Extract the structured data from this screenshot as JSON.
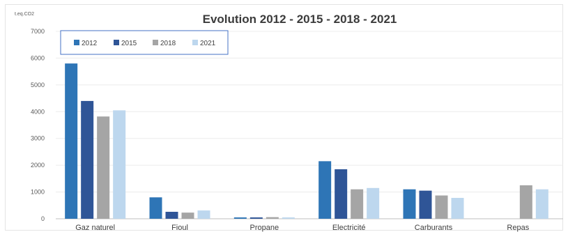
{
  "chart_data": {
    "type": "bar",
    "title": "Evolution 2012 - 2015 - 2018 - 2021",
    "ylabel": "t.eq.CO2",
    "xlabel": "",
    "ylim": [
      0,
      7000
    ],
    "yticks": [
      0,
      1000,
      2000,
      3000,
      4000,
      5000,
      6000,
      7000
    ],
    "grid": true,
    "legend": "top-left",
    "categories": [
      "Gaz naturel",
      "Fioul",
      "Propane",
      "Electricité",
      "Carburants",
      "Repas"
    ],
    "series": [
      {
        "name": "2012",
        "color": "#2e75b6",
        "values": [
          5800,
          800,
          50,
          2150,
          1100,
          null
        ]
      },
      {
        "name": "2015",
        "color": "#2f5597",
        "values": [
          4400,
          260,
          50,
          1850,
          1050,
          null
        ]
      },
      {
        "name": "2018",
        "color": "#a5a5a5",
        "values": [
          3820,
          230,
          60,
          1100,
          870,
          1250
        ]
      },
      {
        "name": "2021",
        "color": "#bdd7ee",
        "values": [
          4050,
          310,
          50,
          1150,
          780,
          1100
        ]
      }
    ]
  }
}
